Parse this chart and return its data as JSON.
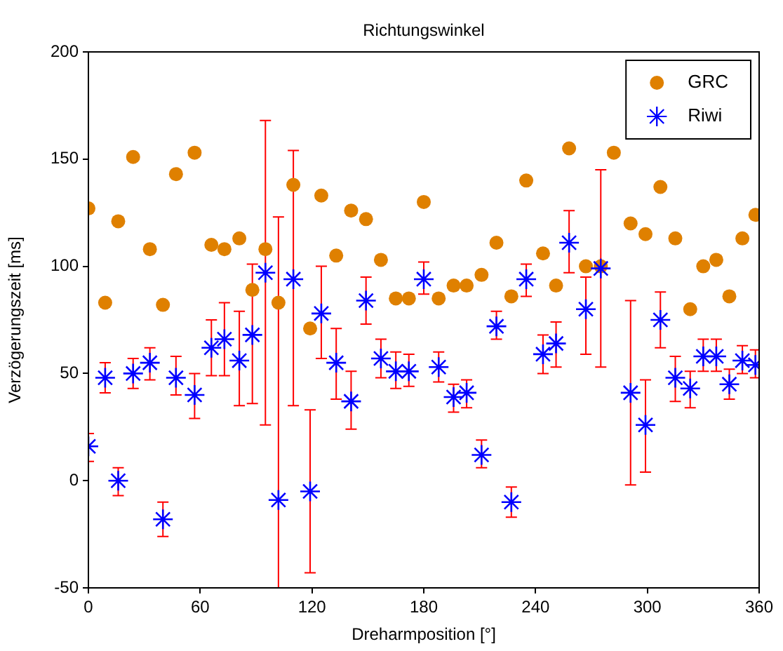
{
  "chart_data": {
    "type": "scatter",
    "title": "Richtungswinkel",
    "xlabel": "Dreharmposition [°]",
    "ylabel": "Verzögerungszeit [ms]",
    "x": [
      0,
      9,
      16,
      24,
      33,
      40,
      47,
      57,
      66,
      73,
      81,
      88,
      95,
      102,
      110,
      119,
      125,
      133,
      141,
      149,
      157,
      165,
      172,
      180,
      188,
      196,
      203,
      211,
      219,
      227,
      235,
      244,
      251,
      258,
      267,
      275,
      282,
      291,
      299,
      307,
      315,
      323,
      330,
      337,
      344,
      351,
      358
    ],
    "xlim": [
      0,
      360
    ],
    "xticks": [
      0,
      60,
      120,
      180,
      240,
      300,
      360
    ],
    "ylim": [
      -50,
      200
    ],
    "yticks": [
      -50,
      0,
      50,
      100,
      150,
      200
    ],
    "legend": "top right",
    "grid": false,
    "series": [
      {
        "name": "GRC",
        "color": "#df8000",
        "marker": "circle",
        "values": [
          127,
          83,
          121,
          151,
          108,
          82,
          143,
          153,
          110,
          108,
          113,
          89,
          108,
          83,
          138,
          71,
          133,
          105,
          126,
          122,
          103,
          85,
          85,
          130,
          85,
          91,
          91,
          96,
          111,
          86,
          140,
          106,
          91,
          155,
          100,
          100,
          153,
          120,
          115,
          137,
          113,
          80,
          100,
          103,
          86,
          113,
          124
        ]
      },
      {
        "name": "Riwi",
        "color": "#0000ff",
        "marker": "cross",
        "values": [
          16,
          48,
          0,
          50,
          55,
          -18,
          48,
          40,
          62,
          66,
          56,
          68,
          97,
          -9,
          94,
          -5,
          78,
          55,
          37,
          84,
          57,
          51,
          51,
          94,
          53,
          39,
          41,
          12,
          72,
          -10,
          94,
          59,
          64,
          111,
          80,
          99,
          null,
          41,
          26,
          75,
          48,
          43,
          58,
          58,
          45,
          56,
          54
        ],
        "errors": [
          [
            9,
            22
          ],
          [
            41,
            55
          ],
          [
            -7,
            6
          ],
          [
            43,
            57
          ],
          [
            47,
            62
          ],
          [
            -26,
            -10
          ],
          [
            40,
            58
          ],
          [
            29,
            50
          ],
          [
            49,
            75
          ],
          [
            49,
            83
          ],
          [
            35,
            79
          ],
          [
            36,
            101
          ],
          [
            26,
            168
          ],
          [
            -50,
            123
          ],
          [
            35,
            154
          ],
          [
            -43,
            33
          ],
          [
            57,
            100
          ],
          [
            38,
            71
          ],
          [
            24,
            51
          ],
          [
            73,
            95
          ],
          [
            48,
            66
          ],
          [
            43,
            60
          ],
          [
            44,
            59
          ],
          [
            87,
            102
          ],
          [
            46,
            60
          ],
          [
            32,
            45
          ],
          [
            34,
            47
          ],
          [
            6,
            19
          ],
          [
            66,
            79
          ],
          [
            -17,
            -3
          ],
          [
            86,
            101
          ],
          [
            50,
            68
          ],
          [
            53,
            74
          ],
          [
            97,
            126
          ],
          [
            59,
            95
          ],
          [
            53,
            145
          ],
          null,
          [
            -2,
            84
          ],
          [
            4,
            47
          ],
          [
            62,
            88
          ],
          [
            37,
            58
          ],
          [
            34,
            51
          ],
          [
            51,
            66
          ],
          [
            51,
            66
          ],
          [
            38,
            52
          ],
          [
            50,
            63
          ],
          [
            48,
            61
          ]
        ]
      }
    ]
  }
}
